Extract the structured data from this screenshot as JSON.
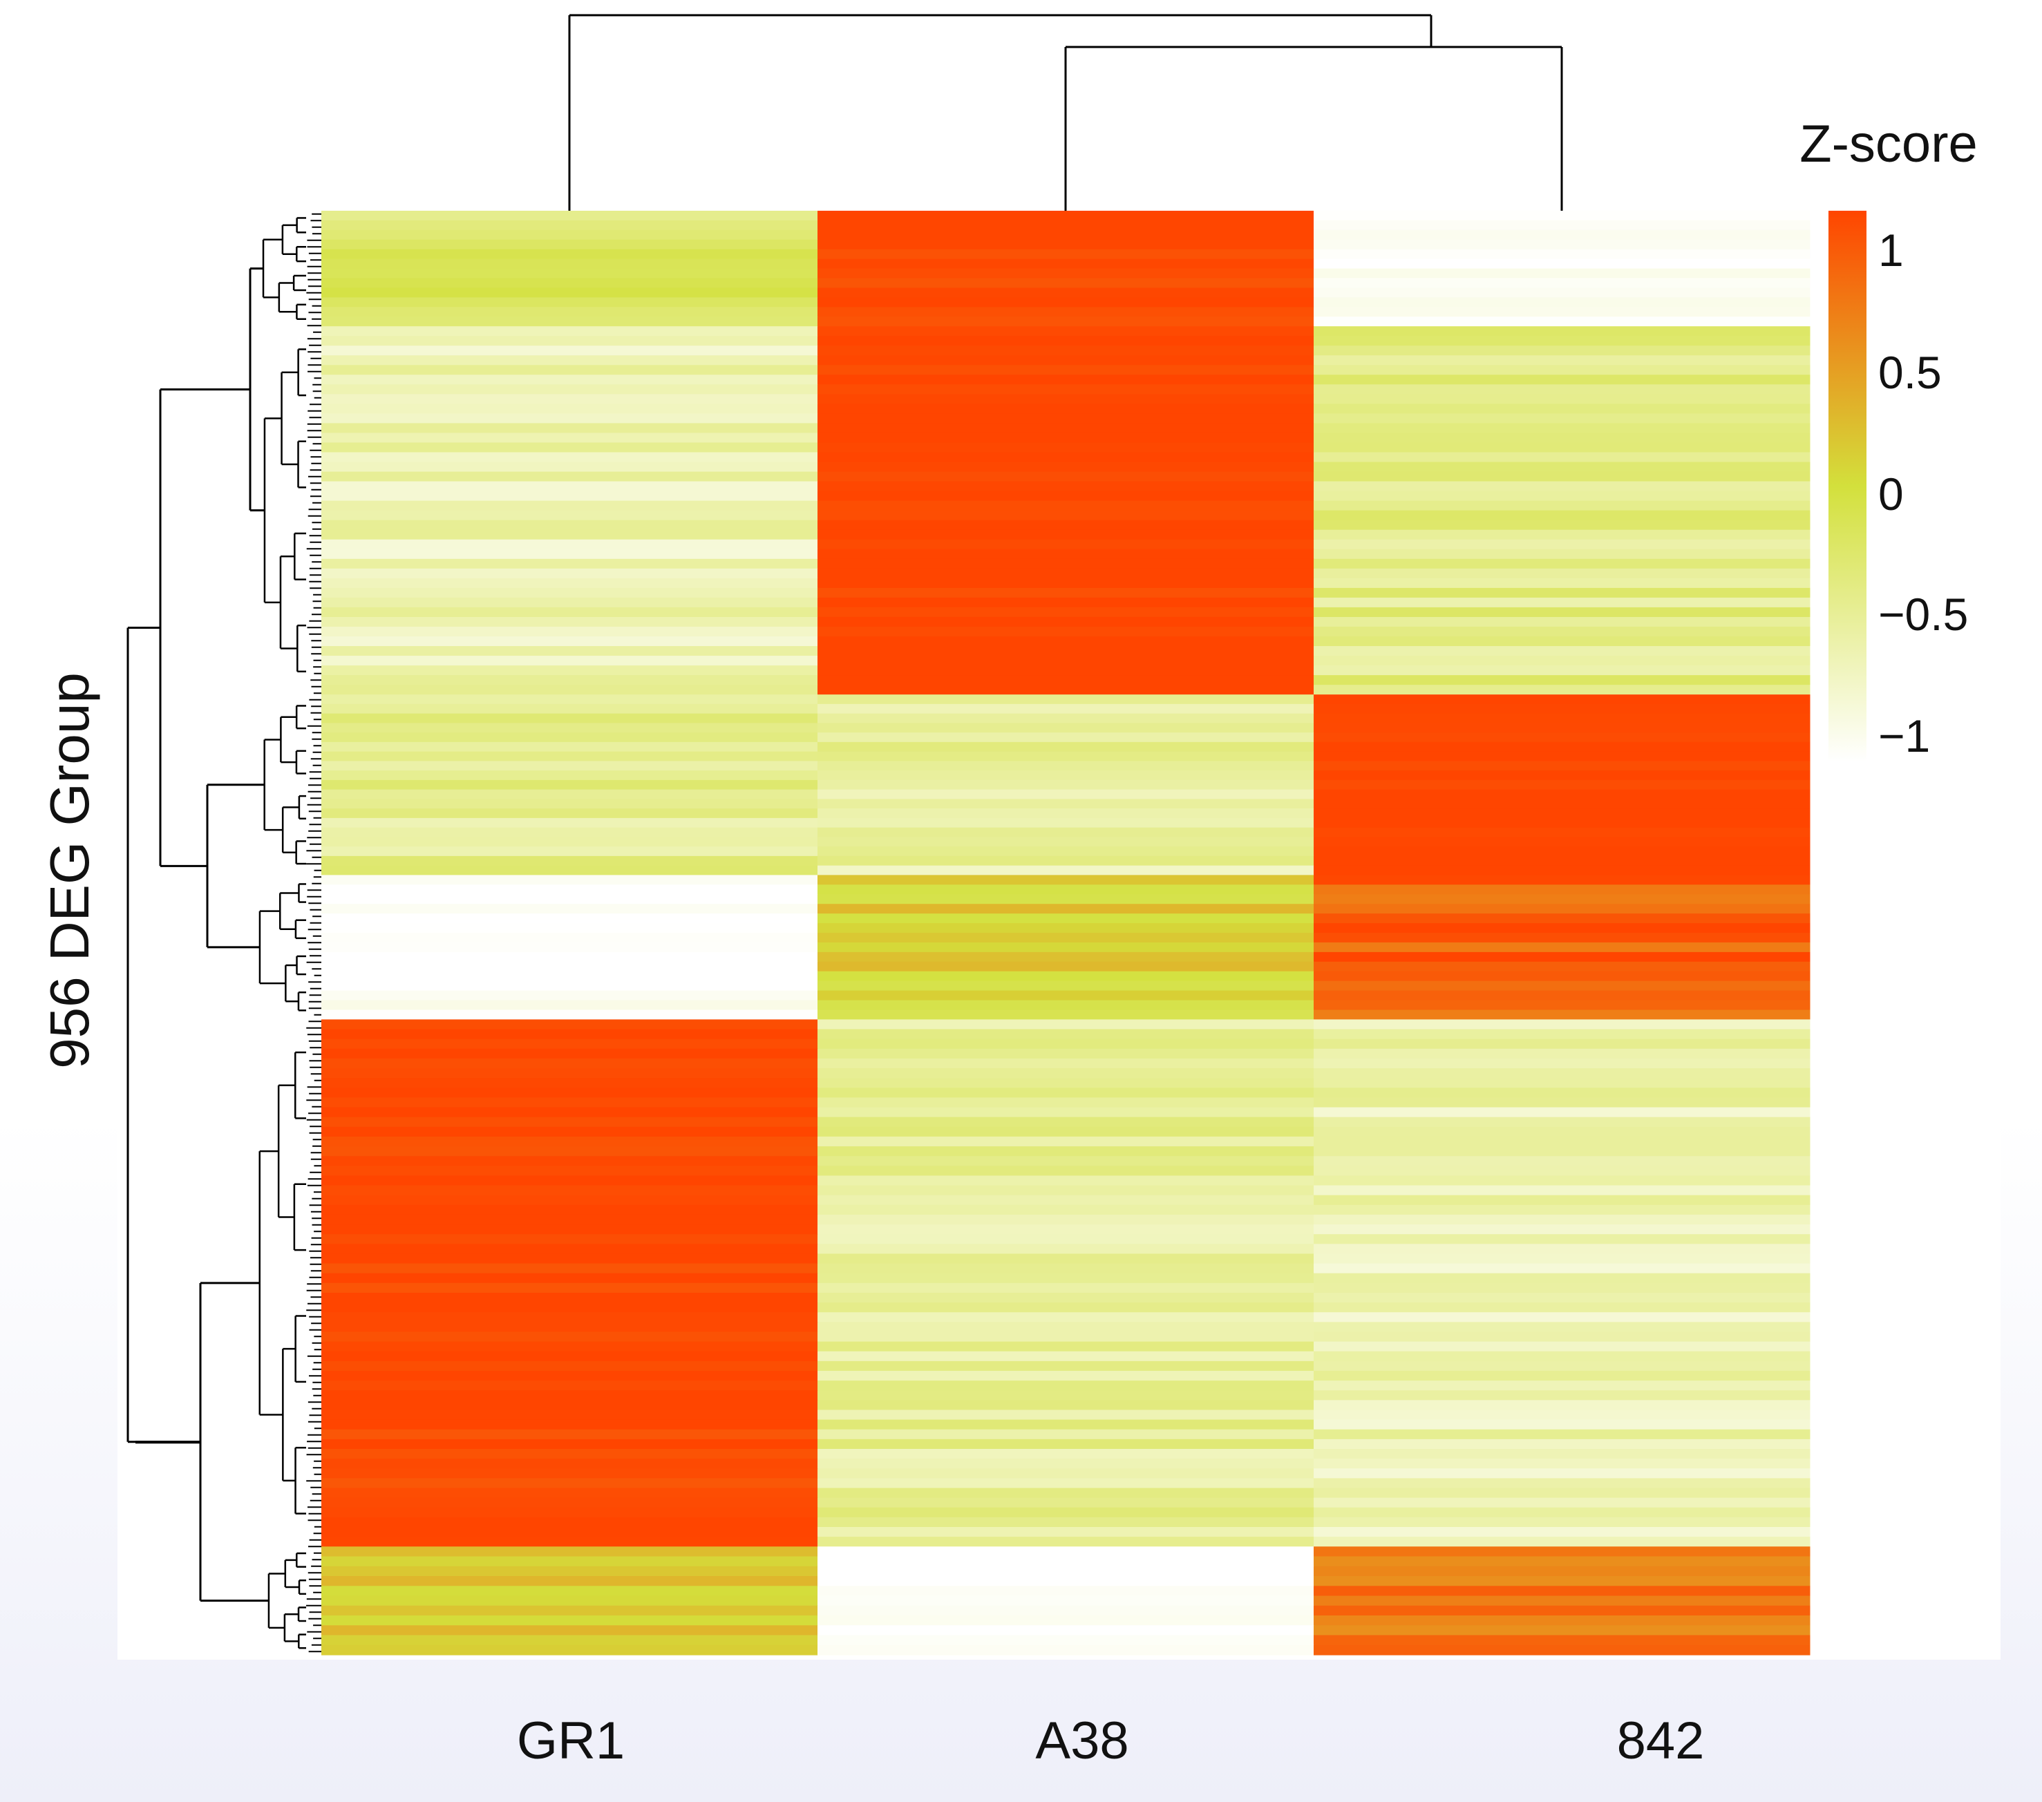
{
  "chart_data": {
    "type": "heatmap",
    "title": "",
    "ylabel": "956 DEG Group",
    "xlabel": "",
    "columns": [
      "GR1",
      "A38",
      "842"
    ],
    "n_genes": 956,
    "legend": {
      "title": "Z-score",
      "ticks": [
        1,
        0.5,
        0,
        -0.5,
        -1
      ],
      "tick_labels": [
        "1",
        "0.5",
        "0",
        "−0.5",
        "−1"
      ],
      "range": [
        -1.15,
        1.15
      ],
      "colors": {
        "low": "#ffffff",
        "mid": "#d3e03c",
        "high": "#ff4500"
      }
    },
    "column_dendrogram": {
      "merge_order": [
        [
          "A38",
          "842"
        ],
        [
          "GR1",
          "A38+842"
        ]
      ]
    },
    "row_clusters": [
      {
        "fraction": 0.08,
        "zscores": [
          -0.25,
          1.1,
          -1.1
        ]
      },
      {
        "fraction": 0.255,
        "zscores": [
          -0.7,
          1.15,
          -0.45
        ]
      },
      {
        "fraction": 0.125,
        "zscores": [
          -0.5,
          -0.6,
          1.15
        ]
      },
      {
        "fraction": 0.1,
        "zscores": [
          -1.1,
          0.1,
          0.95
        ]
      },
      {
        "fraction": 0.365,
        "zscores": [
          1.1,
          -0.55,
          -0.7
        ]
      },
      {
        "fraction": 0.075,
        "zscores": [
          0.25,
          -1.15,
          0.8
        ]
      }
    ]
  }
}
